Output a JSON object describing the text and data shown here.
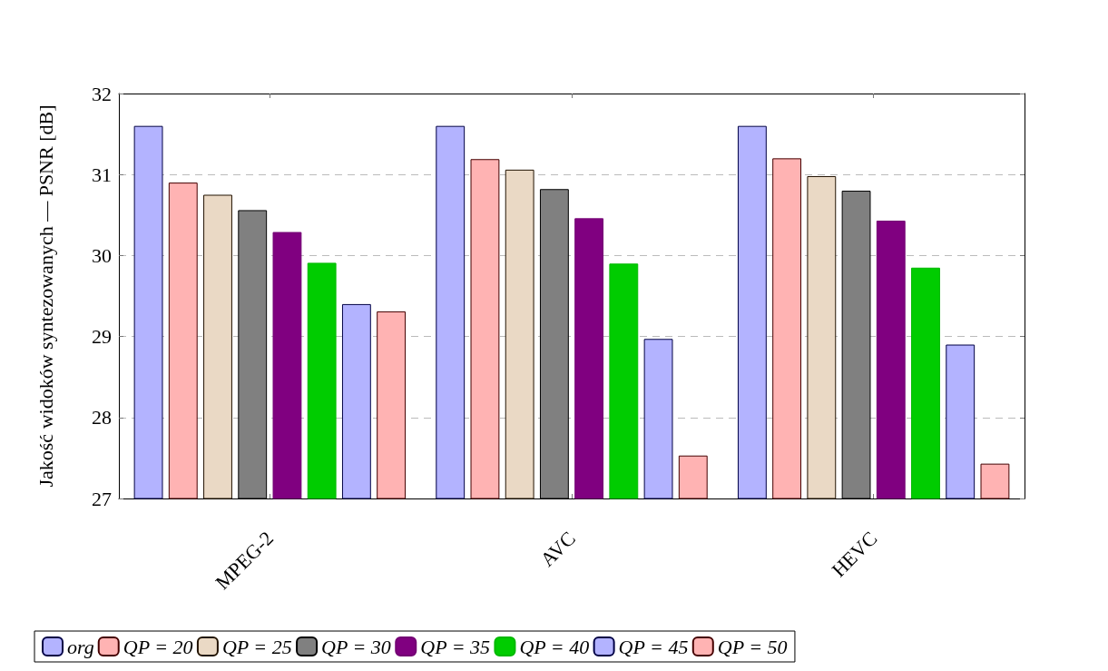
{
  "chart_data": {
    "type": "bar",
    "ylabel": "Jakość widoków syntezowanych — PSNR [dB]",
    "categories": [
      "MPEG-2",
      "AVC",
      "HEVC"
    ],
    "series": [
      {
        "name": "org",
        "color": "#b3b3ff",
        "values": [
          31.6,
          31.6,
          31.6
        ]
      },
      {
        "name": "QP = 20",
        "color": "#ffb3b3",
        "values": [
          30.9,
          31.19,
          31.2
        ]
      },
      {
        "name": "QP = 25",
        "color": "#ead9c5",
        "values": [
          30.75,
          31.06,
          30.98
        ]
      },
      {
        "name": "QP = 30",
        "color": "#808080",
        "values": [
          30.56,
          30.82,
          30.8
        ]
      },
      {
        "name": "QP = 35",
        "color": "#800080",
        "values": [
          30.29,
          30.46,
          30.43
        ]
      },
      {
        "name": "QP = 40",
        "color": "#00cc00",
        "values": [
          29.91,
          29.9,
          29.85
        ]
      },
      {
        "name": "QP = 45",
        "color": "#b3b3ff",
        "values": [
          29.4,
          28.97,
          28.9
        ]
      },
      {
        "name": "QP = 50",
        "color": "#ffb3b3",
        "values": [
          29.31,
          27.53,
          27.43
        ]
      }
    ],
    "ylim": [
      27,
      32
    ],
    "yticks": [
      27,
      28,
      29,
      30,
      31,
      32
    ],
    "grid": "y",
    "legend": "bottom"
  }
}
